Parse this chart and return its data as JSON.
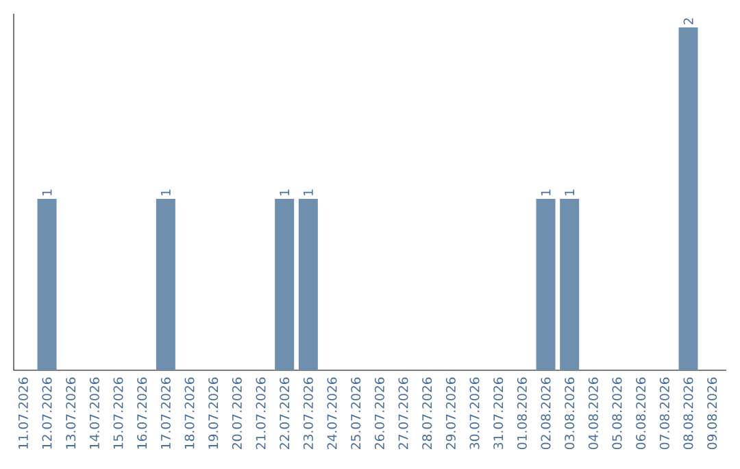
{
  "chart_data": {
    "type": "bar",
    "categories": [
      "11.07.2026",
      "12.07.2026",
      "13.07.2026",
      "14.07.2026",
      "15.07.2026",
      "16.07.2026",
      "17.07.2026",
      "18.07.2026",
      "19.07.2026",
      "20.07.2026",
      "21.07.2026",
      "22.07.2026",
      "23.07.2026",
      "24.07.2026",
      "25.07.2026",
      "26.07.2026",
      "27.07.2026",
      "28.07.2026",
      "29.07.2026",
      "30.07.2026",
      "31.07.2026",
      "01.08.2026",
      "02.08.2026",
      "03.08.2026",
      "04.08.2026",
      "05.08.2026",
      "06.08.2026",
      "07.08.2026",
      "08.08.2026",
      "09.08.2026"
    ],
    "values": [
      0,
      1,
      0,
      0,
      0,
      0,
      1,
      0,
      0,
      0,
      0,
      1,
      1,
      0,
      0,
      0,
      0,
      0,
      0,
      0,
      0,
      0,
      1,
      1,
      0,
      0,
      0,
      0,
      2,
      0
    ],
    "value_labels": [
      null,
      "1",
      null,
      null,
      null,
      null,
      "1",
      null,
      null,
      null,
      null,
      "1",
      "1",
      null,
      null,
      null,
      null,
      null,
      null,
      null,
      null,
      null,
      "1",
      "1",
      null,
      null,
      null,
      null,
      "2",
      null
    ],
    "color": "#6e8fad",
    "tick_labels": "x"
  }
}
